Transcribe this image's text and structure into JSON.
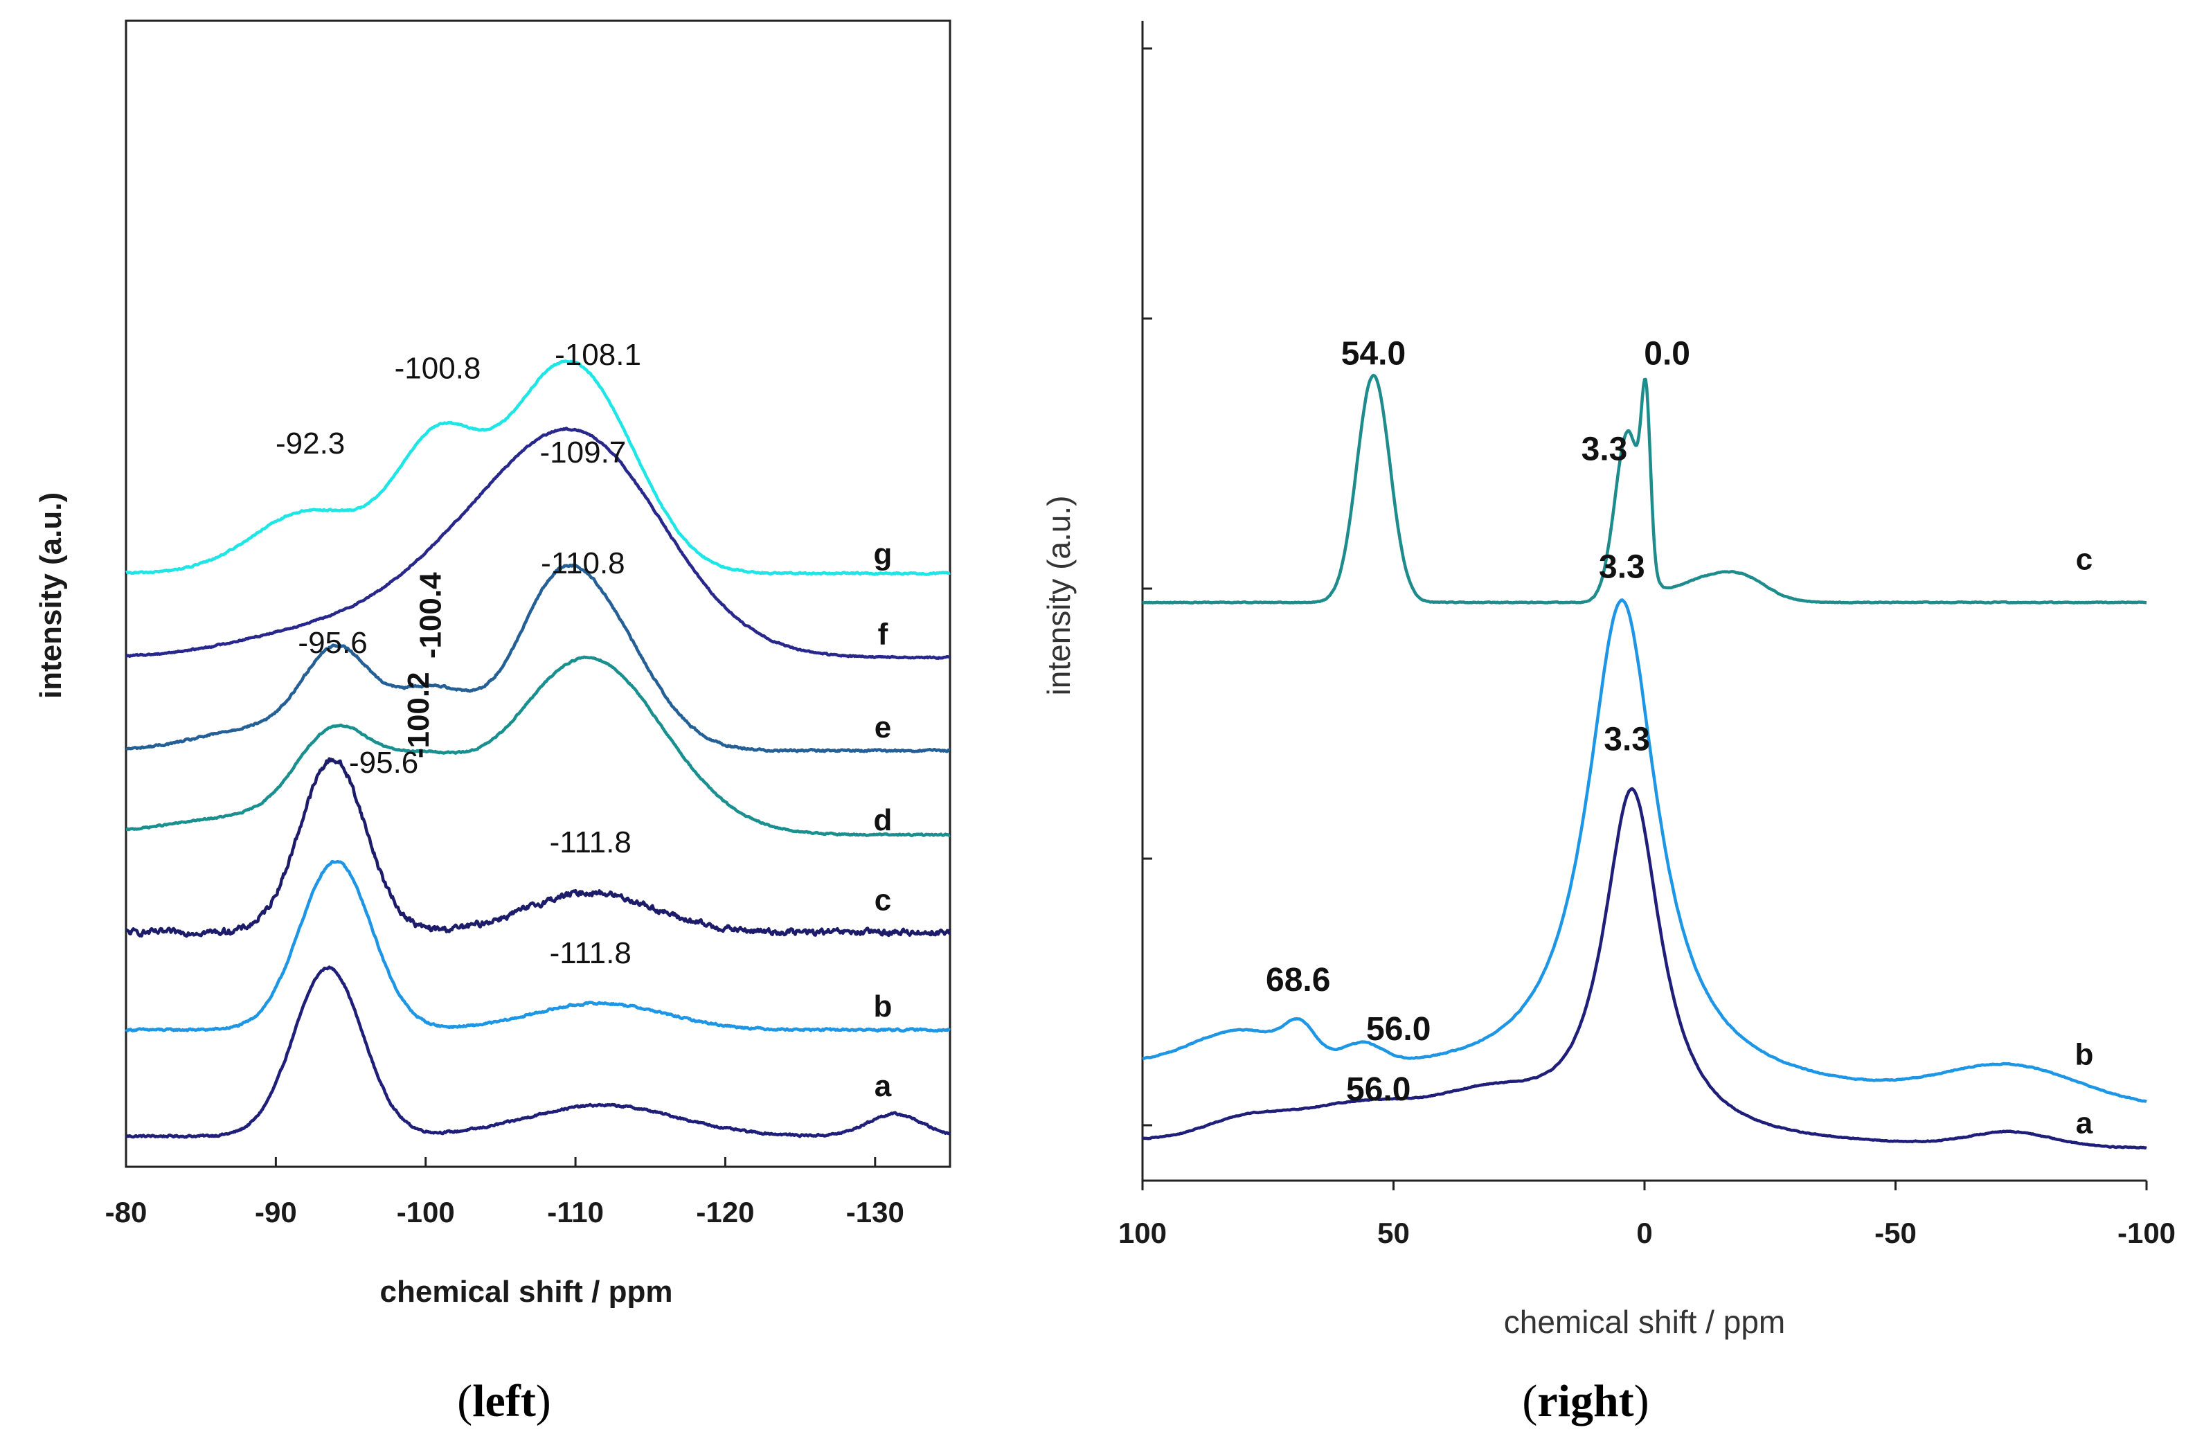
{
  "chart_data": [
    {
      "panel": "left",
      "type": "line",
      "caption": {
        "open": "(",
        "label": "left",
        "close": ")"
      },
      "xlabel": "chemical shift / ppm",
      "ylabel": "intensity (a.u.)",
      "xlim": [
        -80,
        -135
      ],
      "xticks": [
        -80,
        -90,
        -100,
        -110,
        -120,
        -130
      ],
      "series": [
        {
          "name": "a",
          "color": "#1f1f7a",
          "baseline": 0.03,
          "noise": 0.004,
          "peaks": [
            {
              "c": -93.5,
              "h": 0.38,
              "w": 2.3
            },
            {
              "c": -111.8,
              "h": 0.07,
              "w": 5.0
            },
            {
              "c": -131.3,
              "h": 0.05,
              "w": 1.8
            }
          ]
        },
        {
          "name": "b",
          "color": "#1e96e6",
          "baseline": 0.27,
          "noise": 0.004,
          "peaks": [
            {
              "c": -94.0,
              "h": 0.38,
              "w": 2.4
            },
            {
              "c": -111.6,
              "h": 0.06,
              "w": 4.4
            }
          ]
        },
        {
          "name": "c",
          "color": "#1c1c6b",
          "baseline": 0.49,
          "noise": 0.012,
          "peaks": [
            {
              "c": -93.8,
              "h": 0.39,
              "w": 2.2
            },
            {
              "c": -111.0,
              "h": 0.09,
              "w": 4.2
            }
          ]
        },
        {
          "name": "d",
          "color": "#1a8f8f",
          "baseline": 0.71,
          "noise": 0.003,
          "peaks": [
            {
              "c": -93.8,
              "h": 0.2,
              "w": 2.5
            },
            {
              "c": -99.5,
              "h": 0.14,
              "w": 3.0
            },
            {
              "c": -110.8,
              "h": 0.4,
              "w": 5.0
            },
            {
              "c": -88.0,
              "h": 0.04,
              "w": 5.0
            }
          ]
        },
        {
          "name": "e",
          "color": "#245f96",
          "baseline": 0.9,
          "noise": 0.004,
          "peaks": [
            {
              "c": -94.0,
              "h": 0.2,
              "w": 2.2
            },
            {
              "c": -100.4,
              "h": 0.14,
              "w": 3.0
            },
            {
              "c": -108.2,
              "h": 0.21,
              "w": 2.6
            },
            {
              "c": -111.6,
              "h": 0.28,
              "w": 3.4
            },
            {
              "c": -89.0,
              "h": 0.05,
              "w": 4.0
            }
          ]
        },
        {
          "name": "f",
          "color": "#28288c",
          "baseline": 1.11,
          "noise": 0.003,
          "peaks": [
            {
              "c": -93.0,
              "h": 0.06,
              "w": 5.5
            },
            {
              "c": -101.0,
              "h": 0.1,
              "w": 4.5
            },
            {
              "c": -110.0,
              "h": 0.5,
              "w": 5.8
            }
          ]
        },
        {
          "name": "g",
          "color": "#1ee6e6",
          "baseline": 1.3,
          "noise": 0.003,
          "peaks": [
            {
              "c": -92.3,
              "h": 0.14,
              "w": 3.8
            },
            {
              "c": -100.8,
              "h": 0.29,
              "w": 2.8
            },
            {
              "c": -108.3,
              "h": 0.37,
              "w": 3.4
            },
            {
              "c": -112.5,
              "h": 0.2,
              "w": 3.2
            }
          ]
        }
      ],
      "peak_labels": [
        {
          "text": "-92.3",
          "x": -92.3,
          "y": 1.57
        },
        {
          "text": "-100.8",
          "x": -100.8,
          "y": 1.74
        },
        {
          "text": "-108.1",
          "x": -111.5,
          "y": 1.77
        },
        {
          "text": "-109.7",
          "x": -110.5,
          "y": 1.55
        },
        {
          "text": "-100.4",
          "x": -101.0,
          "y": 1.205,
          "rotate": true
        },
        {
          "text": "-110.8",
          "x": -110.5,
          "y": 1.3
        },
        {
          "text": "-95.6",
          "x": -93.8,
          "y": 1.12
        },
        {
          "text": "-100.2",
          "x": -100.2,
          "y": 0.98,
          "rotate": true
        },
        {
          "text": "-95.6",
          "x": -97.2,
          "y": 0.85
        },
        {
          "text": "-111.8",
          "x": -111.0,
          "y": 0.67
        },
        {
          "text": "-111.8",
          "x": -111.0,
          "y": 0.42
        }
      ],
      "trace_labels": [
        {
          "text": "g",
          "y": 1.32
        },
        {
          "text": "f",
          "y": 1.14
        },
        {
          "text": "e",
          "y": 0.93
        },
        {
          "text": "d",
          "y": 0.72
        },
        {
          "text": "c",
          "y": 0.54
        },
        {
          "text": "b",
          "y": 0.3
        },
        {
          "text": "a",
          "y": 0.12
        }
      ]
    },
    {
      "panel": "right",
      "type": "line",
      "caption": {
        "open": "(",
        "label": "right",
        "close": ")"
      },
      "xlabel": "chemical shift / ppm",
      "ylabel": "intensity (a.u.)",
      "xlim": [
        100,
        -100
      ],
      "xticks": [
        100,
        50,
        0,
        -50,
        -100
      ],
      "xtick_labels": [
        "100",
        "50",
        "0",
        "-50",
        "-100"
      ],
      "series": [
        {
          "name": "a",
          "color": "#1f1f7a",
          "baseline": 0.03,
          "slope": -0.03,
          "noise": 0.003,
          "peaks": [
            {
              "c": 2.5,
              "h": 1.3,
              "w": 7.0,
              "shape": "lorentz"
            },
            {
              "c": 56.0,
              "h": 0.13,
              "w": 14.0
            },
            {
              "c": 80.0,
              "h": 0.06,
              "w": 8.0
            },
            {
              "c": 30.0,
              "h": 0.12,
              "w": 10.0
            },
            {
              "c": -73.0,
              "h": 0.05,
              "w": 8.0
            }
          ]
        },
        {
          "name": "b",
          "color": "#1e96e6",
          "baseline": 0.3,
          "slope": -0.15,
          "noise": 0.003,
          "peaks": [
            {
              "c": 4.5,
              "h": 1.78,
              "w": 8.5,
              "shape": "lorentz"
            },
            {
              "c": 68.6,
              "h": 0.1,
              "w": 3.0
            },
            {
              "c": 80.0,
              "h": 0.13,
              "w": 10.0
            },
            {
              "c": 56.0,
              "h": 0.07,
              "w": 4.0
            },
            {
              "c": -73.0,
              "h": 0.12,
              "w": 13.0
            }
          ]
        },
        {
          "name": "c",
          "color": "#1e8c8c",
          "baseline": 2.0,
          "slope": 0.0,
          "noise": 0.003,
          "peaks": [
            {
              "c": 54.0,
              "h": 0.83,
              "w": 3.3
            },
            {
              "c": 3.3,
              "h": 0.62,
              "w": 2.6
            },
            {
              "c": -0.3,
              "h": 0.55,
              "w": 0.9
            },
            {
              "c": -12.0,
              "h": 0.08,
              "w": 7.0
            },
            {
              "c": -20.0,
              "h": 0.06,
              "w": 5.0
            }
          ]
        }
      ],
      "peak_labels": [
        {
          "text": "54.0",
          "x": 54.0,
          "y": 2.87
        },
        {
          "text": "0.0",
          "x": -4.5,
          "y": 2.87
        },
        {
          "text": "3.3",
          "x": 8.0,
          "y": 2.52
        },
        {
          "text": "3.3",
          "x": 4.5,
          "y": 2.09
        },
        {
          "text": "3.3",
          "x": 3.5,
          "y": 1.46
        },
        {
          "text": "68.6",
          "x": 69.0,
          "y": 0.58
        },
        {
          "text": "56.0",
          "x": 49.0,
          "y": 0.4
        },
        {
          "text": "56.0",
          "x": 53.0,
          "y": 0.18
        }
      ],
      "trace_labels": [
        {
          "text": "c",
          "y": 2.12
        },
        {
          "text": "b",
          "y": 0.31
        },
        {
          "text": "a",
          "y": 0.06
        }
      ]
    }
  ]
}
